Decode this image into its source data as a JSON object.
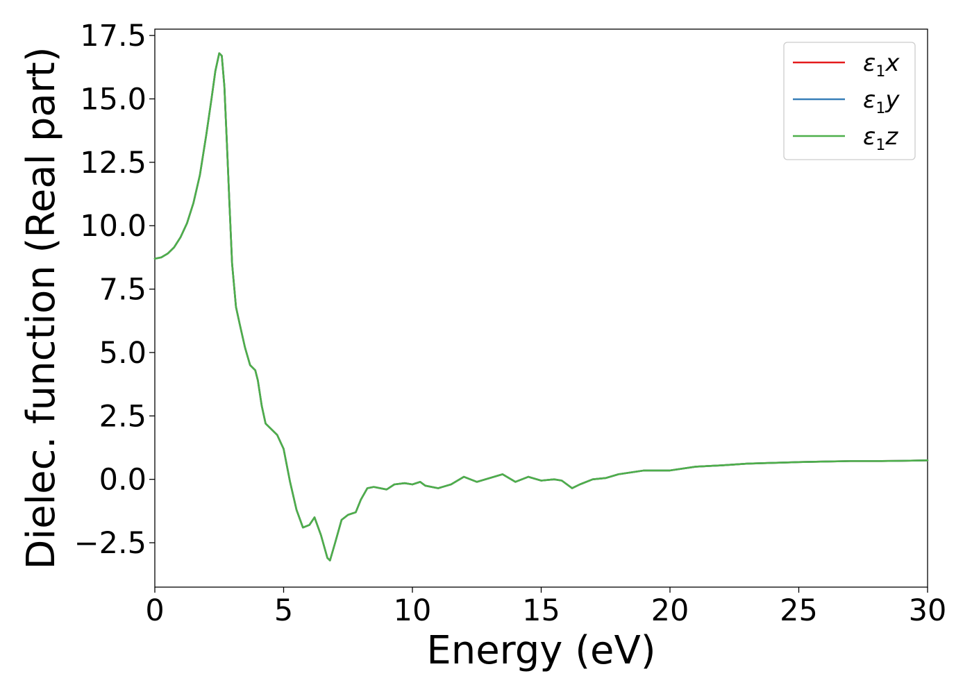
{
  "chart_data": {
    "type": "line",
    "xlabel": "Energy (eV)",
    "ylabel": "Dielec. function (Real part)",
    "xlim": [
      0,
      30
    ],
    "ylim": [
      -4.25,
      17.75
    ],
    "x_ticks": [
      0,
      5,
      10,
      15,
      20,
      25,
      30
    ],
    "x_tick_labels": [
      "0",
      "5",
      "10",
      "15",
      "20",
      "25",
      "30"
    ],
    "y_ticks": [
      -2.5,
      0.0,
      2.5,
      5.0,
      7.5,
      10.0,
      12.5,
      15.0,
      17.5
    ],
    "y_tick_labels": [
      "−2.5",
      "0.0",
      "2.5",
      "5.0",
      "7.5",
      "10.0",
      "12.5",
      "15.0",
      "17.5"
    ],
    "grid": false,
    "legend": {
      "position": "top-right"
    },
    "colors": {
      "x": "#e41a1c",
      "y": "#377eb8",
      "z": "#4daf4a"
    },
    "series": [
      {
        "name": "ε₁x",
        "label_main": "ε",
        "label_sub": "1",
        "label_axis": "x",
        "color": "#e41a1c",
        "x": [
          0,
          0.25,
          0.5,
          0.75,
          1.0,
          1.25,
          1.5,
          1.75,
          2.0,
          2.2,
          2.35,
          2.5,
          2.6,
          2.7,
          2.8,
          2.9,
          3.0,
          3.15,
          3.3,
          3.5,
          3.7,
          3.9,
          4.0,
          4.15,
          4.3,
          4.5,
          4.75,
          5.0,
          5.25,
          5.5,
          5.75,
          6.0,
          6.2,
          6.45,
          6.7,
          6.8,
          7.0,
          7.25,
          7.5,
          7.8,
          8.0,
          8.25,
          8.5,
          9.0,
          9.3,
          9.7,
          10.0,
          10.3,
          10.5,
          11.0,
          11.5,
          12.0,
          12.5,
          13.0,
          13.5,
          14.0,
          14.5,
          15.0,
          15.5,
          15.8,
          16.2,
          16.5,
          17.0,
          17.5,
          18.0,
          19.0,
          20.0,
          21.0,
          22.0,
          23.0,
          24.0,
          25.0,
          26.0,
          27.0,
          28.0,
          29.0,
          30.0
        ],
        "y": [
          8.7,
          8.75,
          8.9,
          9.15,
          9.55,
          10.1,
          10.9,
          12.0,
          13.6,
          15.0,
          16.1,
          16.8,
          16.7,
          15.5,
          13.2,
          10.8,
          8.5,
          6.8,
          6.1,
          5.2,
          4.5,
          4.3,
          3.9,
          2.9,
          2.2,
          2.0,
          1.75,
          1.2,
          -0.1,
          -1.2,
          -1.9,
          -1.8,
          -1.5,
          -2.2,
          -3.1,
          -3.2,
          -2.5,
          -1.6,
          -1.4,
          -1.3,
          -0.8,
          -0.35,
          -0.3,
          -0.4,
          -0.2,
          -0.15,
          -0.2,
          -0.1,
          -0.25,
          -0.35,
          -0.2,
          0.1,
          -0.1,
          0.05,
          0.2,
          -0.1,
          0.1,
          -0.05,
          0.0,
          -0.05,
          -0.35,
          -0.2,
          0.0,
          0.05,
          0.2,
          0.35,
          0.35,
          0.5,
          0.55,
          0.62,
          0.65,
          0.68,
          0.7,
          0.72,
          0.72,
          0.73,
          0.75
        ]
      },
      {
        "name": "ε₁y",
        "label_main": "ε",
        "label_sub": "1",
        "label_axis": "y",
        "color": "#377eb8",
        "x": [
          0,
          0.25,
          0.5,
          0.75,
          1.0,
          1.25,
          1.5,
          1.75,
          2.0,
          2.2,
          2.35,
          2.5,
          2.6,
          2.7,
          2.8,
          2.9,
          3.0,
          3.15,
          3.3,
          3.5,
          3.7,
          3.9,
          4.0,
          4.15,
          4.3,
          4.5,
          4.75,
          5.0,
          5.25,
          5.5,
          5.75,
          6.0,
          6.2,
          6.45,
          6.7,
          6.8,
          7.0,
          7.25,
          7.5,
          7.8,
          8.0,
          8.25,
          8.5,
          9.0,
          9.3,
          9.7,
          10.0,
          10.3,
          10.5,
          11.0,
          11.5,
          12.0,
          12.5,
          13.0,
          13.5,
          14.0,
          14.5,
          15.0,
          15.5,
          15.8,
          16.2,
          16.5,
          17.0,
          17.5,
          18.0,
          19.0,
          20.0,
          21.0,
          22.0,
          23.0,
          24.0,
          25.0,
          26.0,
          27.0,
          28.0,
          29.0,
          30.0
        ],
        "y": [
          8.7,
          8.75,
          8.9,
          9.15,
          9.55,
          10.1,
          10.9,
          12.0,
          13.6,
          15.0,
          16.1,
          16.8,
          16.7,
          15.5,
          13.2,
          10.8,
          8.5,
          6.8,
          6.1,
          5.2,
          4.5,
          4.3,
          3.9,
          2.9,
          2.2,
          2.0,
          1.75,
          1.2,
          -0.1,
          -1.2,
          -1.9,
          -1.8,
          -1.5,
          -2.2,
          -3.1,
          -3.2,
          -2.5,
          -1.6,
          -1.4,
          -1.3,
          -0.8,
          -0.35,
          -0.3,
          -0.4,
          -0.2,
          -0.15,
          -0.2,
          -0.1,
          -0.25,
          -0.35,
          -0.2,
          0.1,
          -0.1,
          0.05,
          0.2,
          -0.1,
          0.1,
          -0.05,
          0.0,
          -0.05,
          -0.35,
          -0.2,
          0.0,
          0.05,
          0.2,
          0.35,
          0.35,
          0.5,
          0.55,
          0.62,
          0.65,
          0.68,
          0.7,
          0.72,
          0.72,
          0.73,
          0.75
        ]
      },
      {
        "name": "ε₁z",
        "label_main": "ε",
        "label_sub": "1",
        "label_axis": "z",
        "color": "#4daf4a",
        "x": [
          0,
          0.25,
          0.5,
          0.75,
          1.0,
          1.25,
          1.5,
          1.75,
          2.0,
          2.2,
          2.35,
          2.5,
          2.6,
          2.7,
          2.8,
          2.9,
          3.0,
          3.15,
          3.3,
          3.5,
          3.7,
          3.9,
          4.0,
          4.15,
          4.3,
          4.5,
          4.75,
          5.0,
          5.25,
          5.5,
          5.75,
          6.0,
          6.2,
          6.45,
          6.7,
          6.8,
          7.0,
          7.25,
          7.5,
          7.8,
          8.0,
          8.25,
          8.5,
          9.0,
          9.3,
          9.7,
          10.0,
          10.3,
          10.5,
          11.0,
          11.5,
          12.0,
          12.5,
          13.0,
          13.5,
          14.0,
          14.5,
          15.0,
          15.5,
          15.8,
          16.2,
          16.5,
          17.0,
          17.5,
          18.0,
          19.0,
          20.0,
          21.0,
          22.0,
          23.0,
          24.0,
          25.0,
          26.0,
          27.0,
          28.0,
          29.0,
          30.0
        ],
        "y": [
          8.7,
          8.75,
          8.9,
          9.15,
          9.55,
          10.1,
          10.9,
          12.0,
          13.6,
          15.0,
          16.1,
          16.8,
          16.7,
          15.5,
          13.2,
          10.8,
          8.5,
          6.8,
          6.1,
          5.2,
          4.5,
          4.3,
          3.9,
          2.9,
          2.2,
          2.0,
          1.75,
          1.2,
          -0.1,
          -1.2,
          -1.9,
          -1.8,
          -1.5,
          -2.2,
          -3.1,
          -3.2,
          -2.5,
          -1.6,
          -1.4,
          -1.3,
          -0.8,
          -0.35,
          -0.3,
          -0.4,
          -0.2,
          -0.15,
          -0.2,
          -0.1,
          -0.25,
          -0.35,
          -0.2,
          0.1,
          -0.1,
          0.05,
          0.2,
          -0.1,
          0.1,
          -0.05,
          0.0,
          -0.05,
          -0.35,
          -0.2,
          0.0,
          0.05,
          0.2,
          0.35,
          0.35,
          0.5,
          0.55,
          0.62,
          0.65,
          0.68,
          0.7,
          0.72,
          0.72,
          0.73,
          0.75
        ]
      }
    ]
  }
}
